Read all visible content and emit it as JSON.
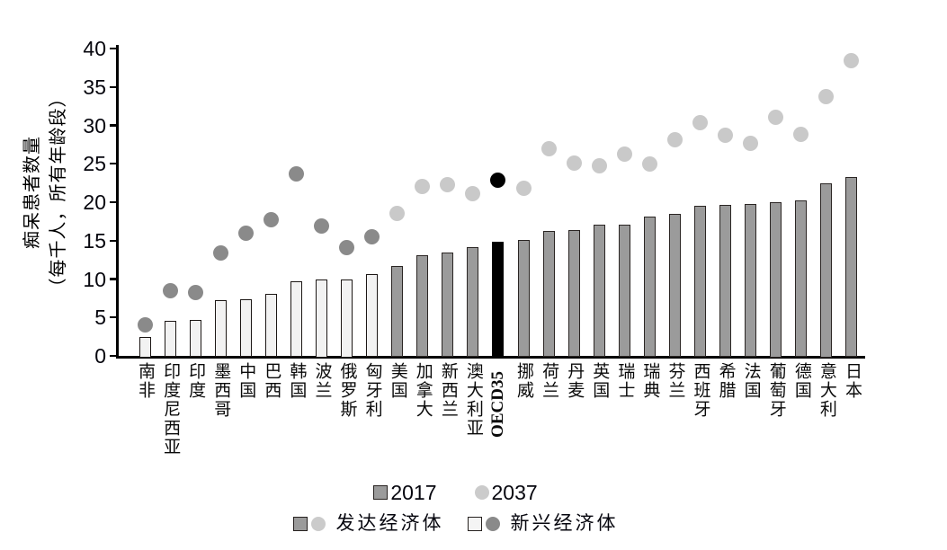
{
  "chart_data": {
    "type": "bar",
    "title": "",
    "ylabel_line1": "痴呆患者数量",
    "ylabel_line2": "（每千人，所有年龄段）",
    "xlabel": "",
    "ylim": [
      0,
      40
    ],
    "yticks": [
      0,
      5,
      10,
      15,
      20,
      25,
      30,
      35,
      40
    ],
    "grid": false,
    "legend_position": "bottom-center",
    "series": [
      {
        "name": "2017",
        "type": "bar"
      },
      {
        "name": "2037",
        "type": "scatter"
      }
    ],
    "categories": [
      "南非",
      "印度尼西亚",
      "印度",
      "墨西哥",
      "中国",
      "巴西",
      "韩国",
      "波兰",
      "俄罗斯",
      "匈牙利",
      "美国",
      "加拿大",
      "新西兰",
      "澳大利亚",
      "OECD35",
      "挪威",
      "荷兰",
      "丹麦",
      "英国",
      "瑞士",
      "瑞典",
      "芬兰",
      "西班牙",
      "希腊",
      "法国",
      "葡萄牙",
      "德国",
      "意大利",
      "日本"
    ],
    "groups": [
      "emerging",
      "emerging",
      "emerging",
      "emerging",
      "emerging",
      "emerging",
      "emerging",
      "emerging",
      "emerging",
      "emerging",
      "developed",
      "developed",
      "developed",
      "developed",
      "oecd",
      "developed",
      "developed",
      "developed",
      "developed",
      "developed",
      "developed",
      "developed",
      "developed",
      "developed",
      "developed",
      "developed",
      "developed",
      "developed",
      "developed"
    ],
    "values_2017": [
      2.5,
      4.6,
      4.7,
      7.2,
      7.4,
      8.1,
      9.7,
      10.0,
      10.0,
      10.6,
      11.7,
      13.1,
      13.5,
      14.2,
      14.8,
      15.1,
      16.2,
      16.4,
      17.1,
      17.1,
      18.1,
      18.5,
      19.5,
      19.6,
      19.8,
      20.0,
      20.2,
      22.5,
      23.3
    ],
    "values_2037": [
      4.0,
      8.5,
      8.3,
      13.4,
      16.0,
      17.7,
      23.7,
      16.9,
      14.1,
      15.5,
      18.5,
      22.1,
      22.3,
      21.1,
      22.9,
      21.8,
      27.0,
      25.1,
      24.7,
      26.2,
      25.0,
      28.1,
      30.4,
      28.7,
      27.7,
      31.1,
      28.8,
      33.7,
      38.4
    ]
  },
  "y_axis": {
    "title_line1": "痴呆患者数量",
    "title_line2": "（每千人，所有年龄段）"
  },
  "legend": {
    "year_2017": {
      "label": "2017"
    },
    "year_2037": {
      "label": "2037"
    },
    "developed": {
      "label": "发达经济体"
    },
    "emerging": {
      "label": "新兴经济体"
    }
  },
  "colors": {
    "bar_developed": "#9b9b9b",
    "bar_emerging_fill": "#f2f2f2",
    "bar_border": "#1c1715",
    "bar_oecd": "#000000",
    "dot_developed": "#c9c9c9",
    "dot_emerging": "#8a8a8a",
    "dot_oecd": "#000000",
    "axis": "#000000",
    "background": "#ffffff"
  }
}
